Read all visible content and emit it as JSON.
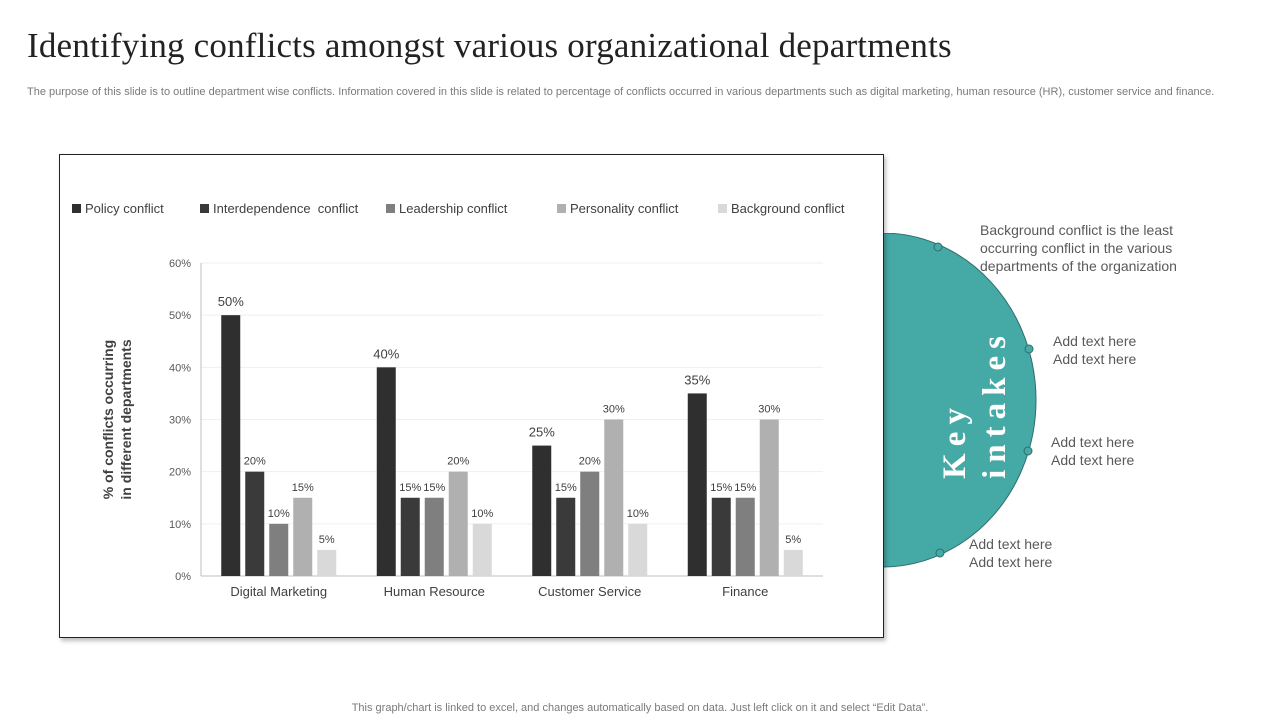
{
  "page": {
    "title": "Identifying conflicts amongst various organizational departments",
    "subtitle": "The purpose of this slide is to outline department wise conflicts. Information covered in this slide is related to percentage of conflicts occurred in various departments such as digital marketing, human resource (HR), customer service and finance.",
    "footer": "This graph/chart is linked to excel,  and changes automatically based on data. Just left click on it and select “Edit Data”."
  },
  "key_intakes": {
    "label_line1": "Key",
    "label_line2": "intakes",
    "accent_color": "#45a9a6",
    "notes": [
      "Background conflict is the least occurring conflict in the various departments of the organization",
      "Add text here Add text here",
      "Add text here Add text here",
      "Add text here Add text here"
    ]
  },
  "chart_data": {
    "type": "bar",
    "title": "",
    "xlabel": "",
    "ylabel": "% of conflicts occurring in different departments",
    "ylabel_lines": [
      "% of conflicts occurring",
      "in different departments"
    ],
    "ylim": [
      0,
      60
    ],
    "yticks": [
      "0%",
      "10%",
      "20%",
      "30%",
      "40%",
      "50%",
      "60%"
    ],
    "grid": true,
    "legend_position": "top",
    "categories": [
      "Digital Marketing",
      "Human Resource",
      "Customer Service",
      "Finance"
    ],
    "series": [
      {
        "name": "Policy conflict",
        "color": "#2f2f2f",
        "values": [
          50,
          40,
          25,
          35
        ],
        "labels": [
          "50%",
          "40%",
          "25%",
          "35%"
        ]
      },
      {
        "name": "Interdependence  conflict",
        "color": "#3a3a3a",
        "values": [
          20,
          15,
          15,
          15
        ],
        "labels": [
          "20%",
          "15%",
          "15%",
          "15%"
        ]
      },
      {
        "name": "Leadership conflict",
        "color": "#7f7f7f",
        "values": [
          10,
          15,
          20,
          15
        ],
        "labels": [
          "10%",
          "15%",
          "20%",
          "15%"
        ]
      },
      {
        "name": "Personality conflict",
        "color": "#b0b0b0",
        "values": [
          15,
          20,
          30,
          30
        ],
        "labels": [
          "15%",
          "20%",
          "30%",
          "30%"
        ]
      },
      {
        "name": "Background conflict",
        "color": "#d9d9d9",
        "values": [
          5,
          10,
          10,
          5
        ],
        "labels": [
          "5%",
          "10%",
          "10%",
          "5%"
        ]
      }
    ]
  }
}
